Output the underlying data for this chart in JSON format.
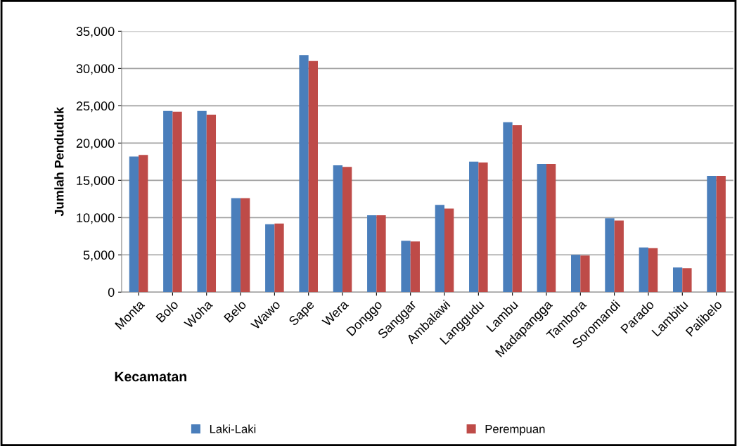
{
  "chart_data": {
    "type": "bar",
    "xlabel": "Kecamatan",
    "ylabel": "Jumlah Penduduk",
    "categories": [
      "Monta",
      "Bolo",
      "Woha",
      "Belo",
      "Wawo",
      "Sape",
      "Wera",
      "Donggo",
      "Sanggar",
      "Ambalawi",
      "Langgudu",
      "Lambu",
      "Madapangga",
      "Tambora",
      "Soromandi",
      "Parado",
      "Lambitu",
      "Palibelo"
    ],
    "series": [
      {
        "name": "Laki-Laki",
        "color": "#4a7ebb",
        "values": [
          18200,
          24300,
          24300,
          12600,
          9100,
          31800,
          17000,
          10300,
          6900,
          11700,
          17500,
          22800,
          17200,
          5000,
          9900,
          6000,
          3300,
          15600
        ]
      },
      {
        "name": "Perempuan",
        "color": "#be4b48",
        "values": [
          18400,
          24200,
          23800,
          12600,
          9200,
          31000,
          16800,
          10300,
          6800,
          11200,
          17400,
          22400,
          17200,
          4900,
          9600,
          5900,
          3200,
          15600
        ]
      }
    ],
    "ylim": [
      0,
      35000
    ],
    "yticks": [
      {
        "value": 0,
        "label": "0"
      },
      {
        "value": 5000,
        "label": "5,000"
      },
      {
        "value": 10000,
        "label": "10,000"
      },
      {
        "value": 15000,
        "label": "15,000"
      },
      {
        "value": 20000,
        "label": "20,000"
      },
      {
        "value": 25000,
        "label": "25,000"
      },
      {
        "value": 30000,
        "label": "30,000"
      },
      {
        "value": 35000,
        "label": "35,000"
      }
    ],
    "grid": "y",
    "legend": "bottom"
  }
}
